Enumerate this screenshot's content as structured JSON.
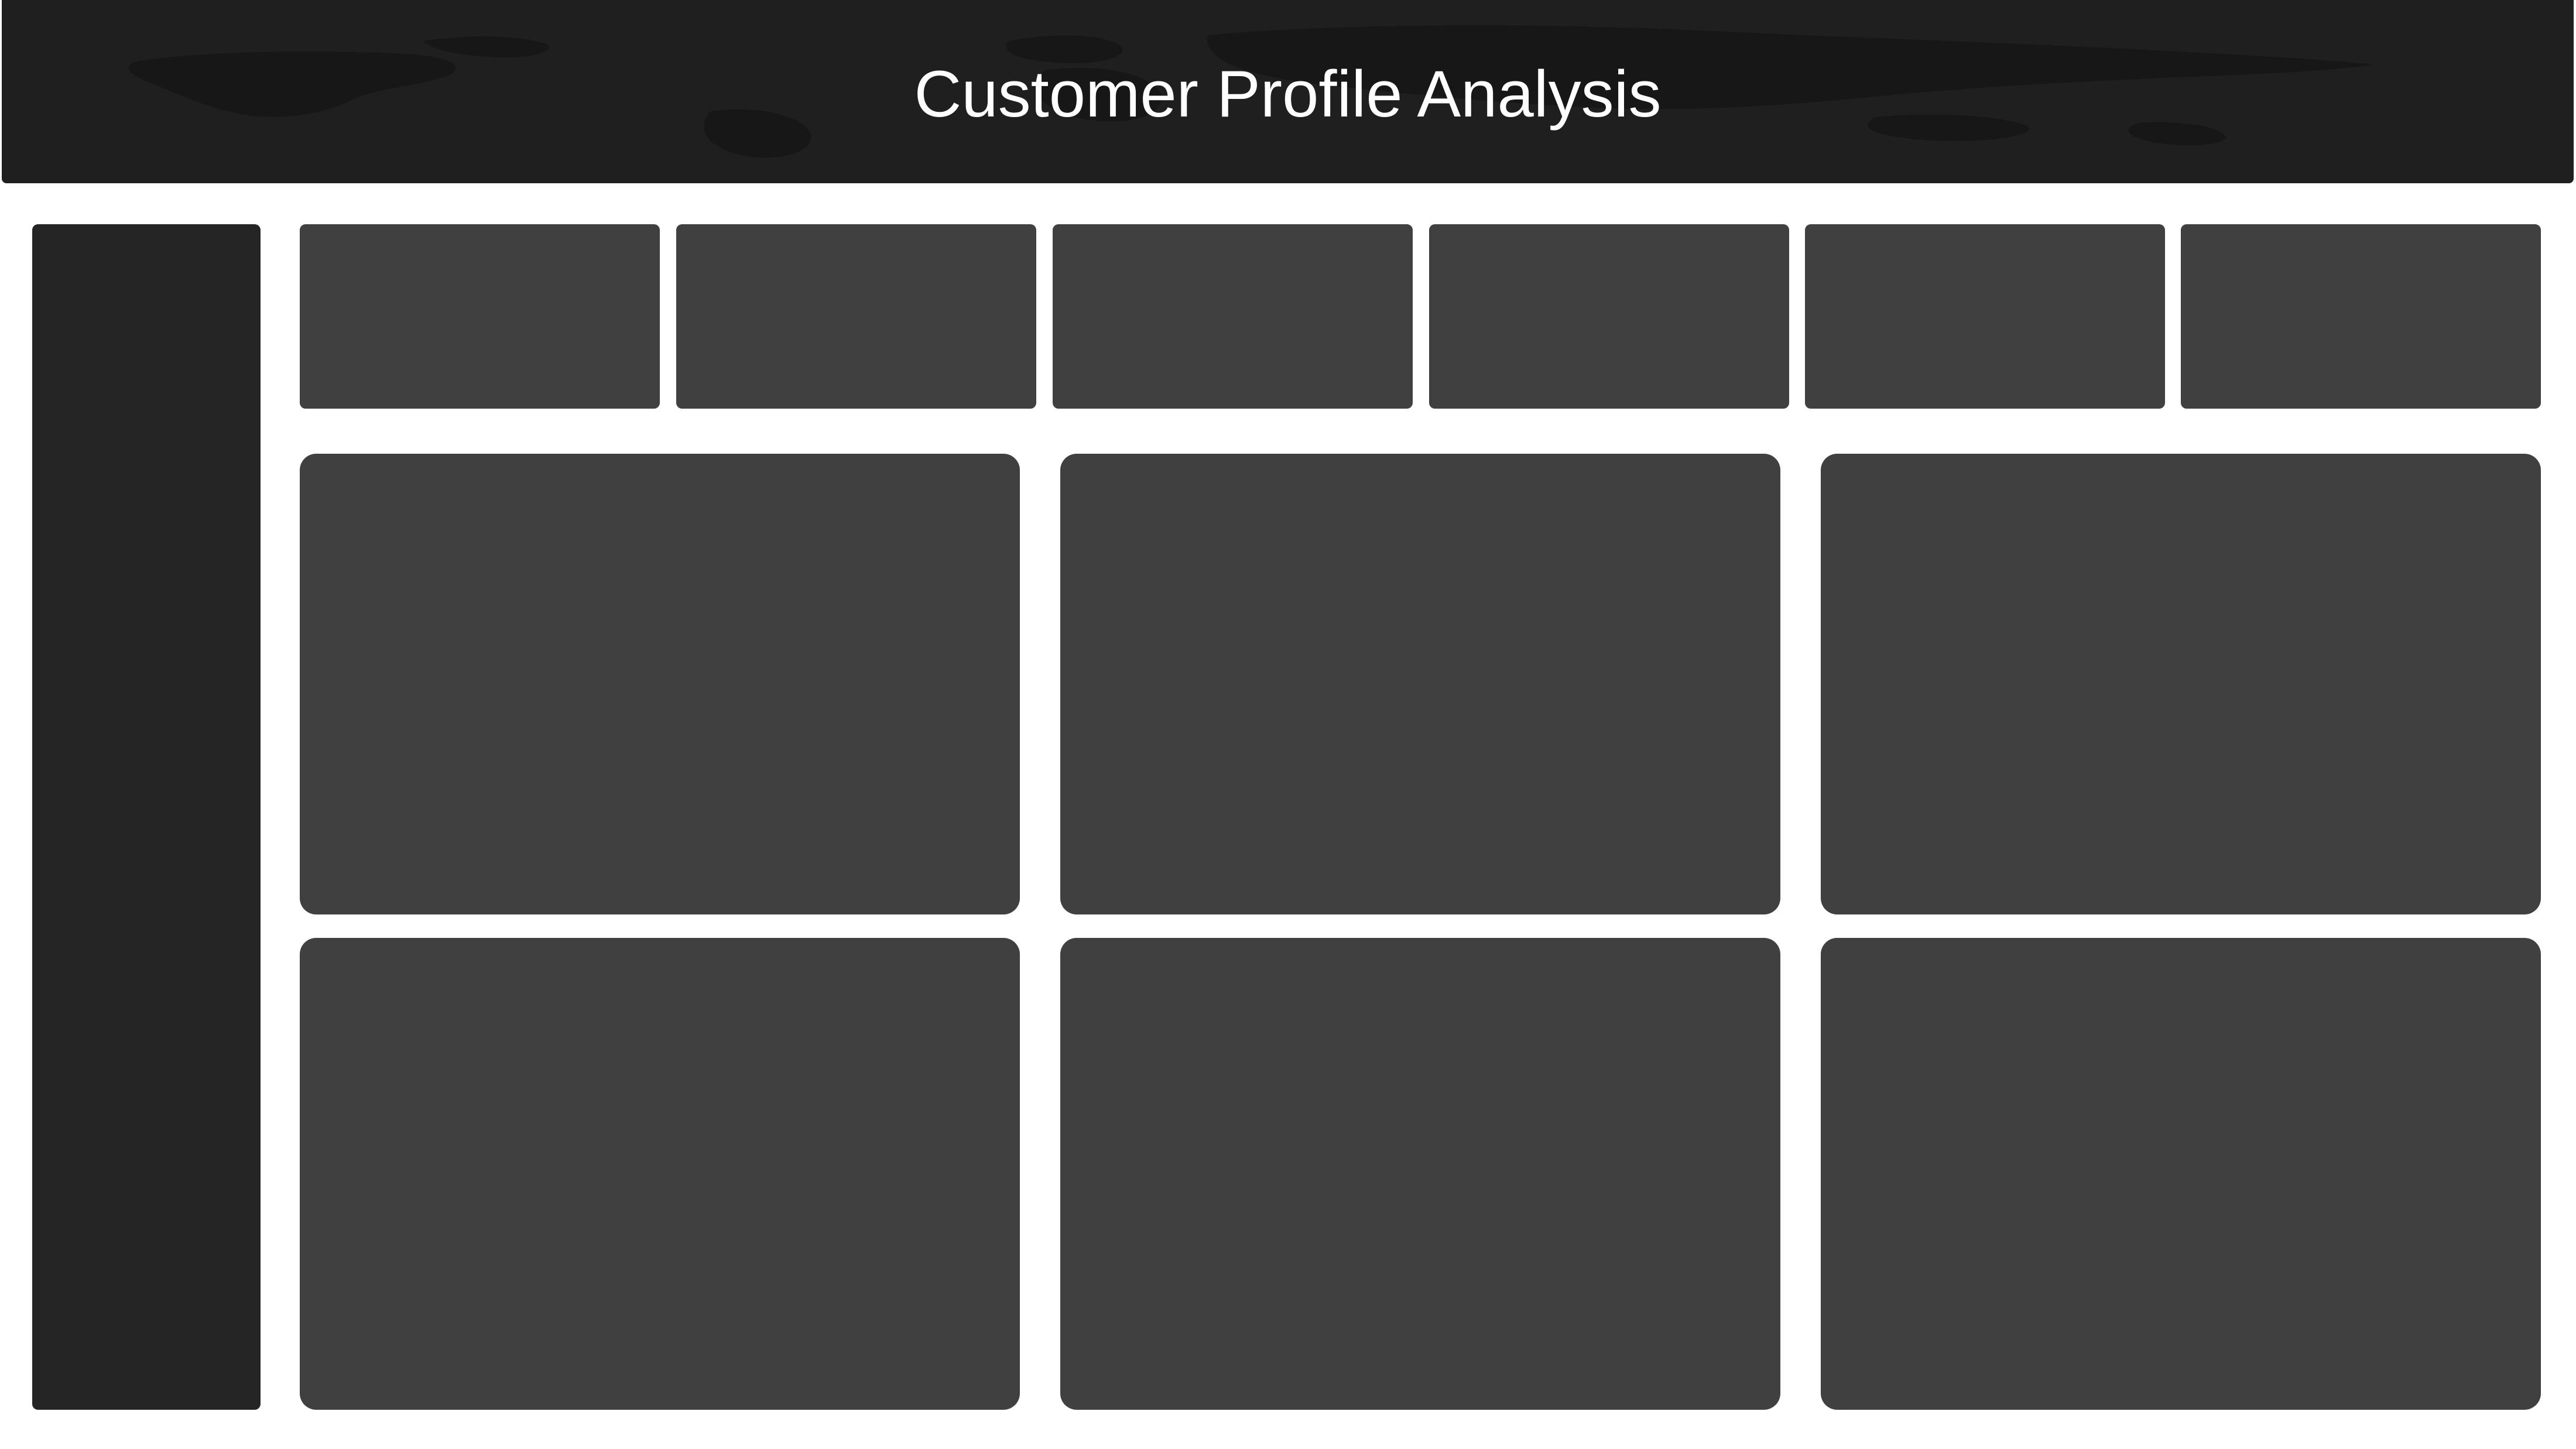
{
  "header": {
    "title": "Customer Profile Analysis"
  },
  "colors": {
    "header_bg": "#1f1f1f",
    "sidebar_bg": "#252525",
    "card_bg": "#404040",
    "page_bg": "#ffffff",
    "title_text": "#ffffff"
  },
  "kpi_cards": [
    {},
    {},
    {},
    {},
    {},
    {}
  ],
  "chart_panels": [
    {},
    {},
    {},
    {},
    {},
    {}
  ]
}
